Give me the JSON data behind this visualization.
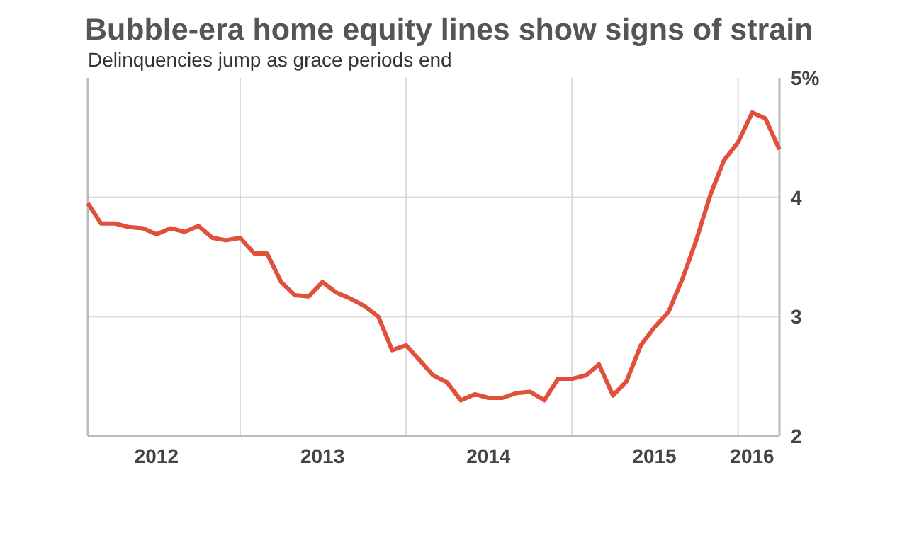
{
  "chart_data": {
    "type": "line",
    "title": "Bubble-era home equity lines show signs of strain",
    "subtitle": "Delinquencies jump as grace periods end",
    "x": [
      "2012-02",
      "2012-03",
      "2012-04",
      "2012-05",
      "2012-06",
      "2012-07",
      "2012-08",
      "2012-09",
      "2012-10",
      "2012-11",
      "2012-12",
      "2013-01",
      "2013-02",
      "2013-03",
      "2013-04",
      "2013-05",
      "2013-06",
      "2013-07",
      "2013-08",
      "2013-09",
      "2013-10",
      "2013-11",
      "2013-12",
      "2014-01",
      "2014-02",
      "2014-03",
      "2014-04",
      "2014-05",
      "2014-06",
      "2014-07",
      "2014-08",
      "2014-09",
      "2014-10",
      "2014-11",
      "2014-12",
      "2015-01",
      "2015-02",
      "2015-03",
      "2015-04",
      "2015-05",
      "2015-06",
      "2015-07",
      "2015-08",
      "2015-09",
      "2015-10",
      "2015-11",
      "2015-12",
      "2016-01",
      "2016-02",
      "2016-03",
      "2016-04"
    ],
    "series": [
      {
        "color": "#e0503a",
        "values": [
          3.95,
          3.78,
          3.78,
          3.75,
          3.74,
          3.69,
          3.74,
          3.71,
          3.76,
          3.66,
          3.64,
          3.66,
          3.53,
          3.53,
          3.29,
          3.18,
          3.17,
          3.29,
          3.2,
          3.15,
          3.09,
          3.0,
          2.72,
          2.76,
          2.63,
          2.51,
          2.45,
          2.3,
          2.35,
          2.32,
          2.32,
          2.36,
          2.37,
          2.3,
          2.48,
          2.48,
          2.51,
          2.6,
          2.34,
          2.46,
          2.76,
          2.91,
          3.04,
          3.32,
          3.64,
          4.02,
          4.31,
          4.46,
          4.71,
          4.66,
          4.4
        ]
      }
    ],
    "xlim": [
      "2012-02",
      "2016-04"
    ],
    "xticks": [
      {
        "value": "2012-07",
        "label": "2012"
      },
      {
        "value": "2013-01",
        "label": null
      },
      {
        "value": "2013-07",
        "label": "2013"
      },
      {
        "value": "2014-01",
        "label": null
      },
      {
        "value": "2014-07",
        "label": "2014"
      },
      {
        "value": "2015-01",
        "label": null
      },
      {
        "value": "2015-07",
        "label": "2015"
      },
      {
        "value": "2016-01",
        "label": null
      },
      {
        "value": "2016-02",
        "label": "2016"
      }
    ],
    "ylim": [
      2,
      5
    ],
    "yticks": [
      2,
      3,
      4,
      {
        "value": 5,
        "label": "5%"
      }
    ],
    "grid": true,
    "marker": "none",
    "line_style": "solid"
  }
}
